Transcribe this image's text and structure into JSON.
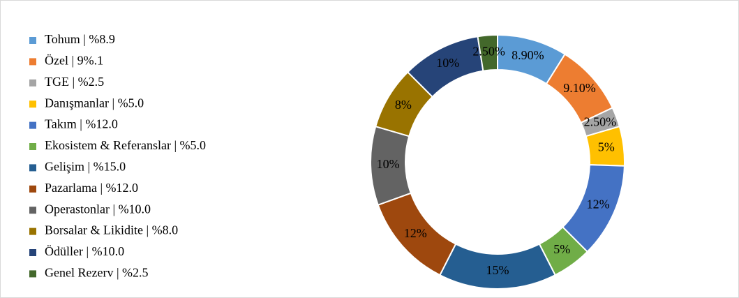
{
  "chart_data": {
    "type": "pie",
    "donut": true,
    "categories": [
      "Tohum | %8.9",
      "Özel | 9%.1",
      "TGE | %2.5",
      "Danışmanlar | %5.0",
      "Takım | %12.0",
      "Ekosistem & Referanslar | %5.0",
      "Gelişim | %15.0",
      "Pazarlama | %12.0",
      "Operastonlar | %10.0",
      "Borsalar & Likidite | %8.0",
      "Ödüller | %10.0",
      "Genel Rezerv | %2.5"
    ],
    "values": [
      8.9,
      9.1,
      2.5,
      5,
      12,
      5,
      15,
      12,
      10,
      8,
      10,
      2.5
    ],
    "value_labels": [
      "8.90%",
      "9.10%",
      "2.50%",
      "5%",
      "12%",
      "5%",
      "15%",
      "12%",
      "10%",
      "8%",
      "10%",
      "2.50%"
    ],
    "colors": [
      "#5B9BD5",
      "#ED7D31",
      "#A5A5A5",
      "#FFC000",
      "#4472C4",
      "#70AD47",
      "#255E91",
      "#9E480E",
      "#636363",
      "#997300",
      "#264478",
      "#43682B"
    ],
    "legend": "left"
  }
}
